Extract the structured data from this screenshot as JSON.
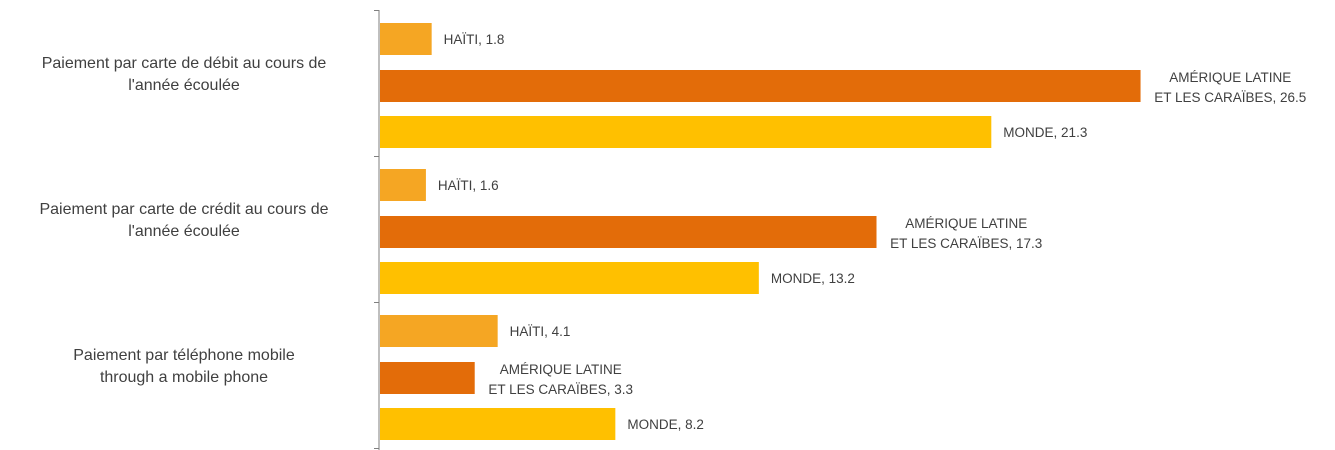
{
  "chart_data": {
    "type": "bar",
    "orientation": "horizontal",
    "categories": [
      [
        "Paiement par carte de débit au cours de",
        "l'année écoulée"
      ],
      [
        "Paiement par carte de crédit au cours de",
        "l'année écoulée"
      ],
      [
        "Paiement par téléphone mobile",
        "through a mobile phone"
      ]
    ],
    "series": [
      {
        "name": "HAÏTI",
        "label_lines": [
          "HAÏTI"
        ],
        "color": "#F5A623",
        "values": [
          1.8,
          1.6,
          4.1
        ]
      },
      {
        "name": "AMÉRIQUE LATINE ET LES CARAÏBES",
        "label_lines": [
          "AMÉRIQUE LATINE",
          "ET LES CARAÏBES"
        ],
        "color": "#E36C09",
        "values": [
          26.5,
          17.3,
          3.3
        ]
      },
      {
        "name": "MONDE",
        "label_lines": [
          "MONDE"
        ],
        "color": "#FFC000",
        "values": [
          21.3,
          13.2,
          8.2
        ]
      }
    ],
    "xlim": [
      0,
      30
    ],
    "grid": false,
    "legend": "none",
    "data_labels": true
  }
}
